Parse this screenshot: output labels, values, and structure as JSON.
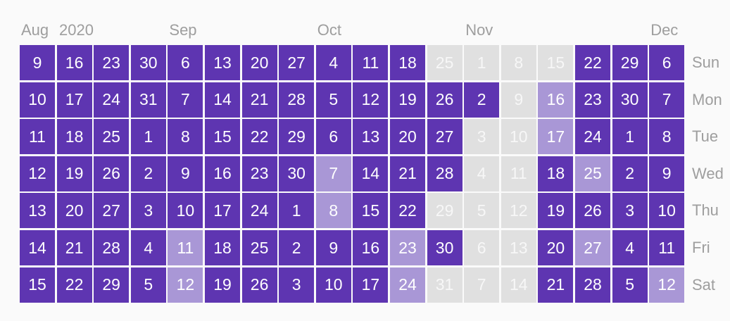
{
  "year_label": "2020",
  "month_labels": [
    {
      "text": "Aug",
      "week": 0
    },
    {
      "text": "Sep",
      "week": 4
    },
    {
      "text": "Oct",
      "week": 8
    },
    {
      "text": "Nov",
      "week": 12
    },
    {
      "text": "Dec",
      "week": 17
    }
  ],
  "day_labels": [
    "Sun",
    "Mon",
    "Tue",
    "Wed",
    "Thu",
    "Fri",
    "Sat"
  ],
  "colors": {
    "full": "#5e35b1",
    "partial": "#a997d6",
    "none": "#e0e0e0"
  },
  "legend_levels": {
    "F": "full",
    "P": "partial",
    "N": "none"
  },
  "weeks": [
    {
      "days": [
        9,
        10,
        11,
        12,
        13,
        14,
        15
      ],
      "levels": "FFFFFFF"
    },
    {
      "days": [
        16,
        17,
        18,
        19,
        20,
        21,
        22
      ],
      "levels": "FFFFFFF"
    },
    {
      "days": [
        23,
        24,
        25,
        26,
        27,
        28,
        29
      ],
      "levels": "FFFFFFF"
    },
    {
      "days": [
        30,
        31,
        1,
        2,
        3,
        4,
        5
      ],
      "levels": "FFFFFFF"
    },
    {
      "days": [
        6,
        7,
        8,
        9,
        10,
        11,
        12
      ],
      "levels": "FFFFFPP"
    },
    {
      "days": [
        13,
        14,
        15,
        16,
        17,
        18,
        19
      ],
      "levels": "FFFFFFF"
    },
    {
      "days": [
        20,
        21,
        22,
        23,
        24,
        25,
        26
      ],
      "levels": "FFFFFFF"
    },
    {
      "days": [
        27,
        28,
        29,
        30,
        1,
        2,
        3
      ],
      "levels": "FFFFFFF"
    },
    {
      "days": [
        4,
        5,
        6,
        7,
        8,
        9,
        10
      ],
      "levels": "FFFPPFF"
    },
    {
      "days": [
        11,
        12,
        13,
        14,
        15,
        16,
        17
      ],
      "levels": "FFFFFFF"
    },
    {
      "days": [
        18,
        19,
        20,
        21,
        22,
        23,
        24
      ],
      "levels": "FFFFFPP"
    },
    {
      "days": [
        25,
        26,
        27,
        28,
        29,
        30,
        31
      ],
      "levels": "NFFFNFN"
    },
    {
      "days": [
        1,
        2,
        3,
        4,
        5,
        6,
        7
      ],
      "levels": "NFNNNNN"
    },
    {
      "days": [
        8,
        9,
        10,
        11,
        12,
        13,
        14
      ],
      "levels": "NNNNNNN"
    },
    {
      "days": [
        15,
        16,
        17,
        18,
        19,
        20,
        21
      ],
      "levels": "NPPFFFF"
    },
    {
      "days": [
        22,
        23,
        24,
        25,
        26,
        27,
        28
      ],
      "levels": "FFFPFPF"
    },
    {
      "days": [
        29,
        30,
        1,
        2,
        3,
        4,
        5
      ],
      "levels": "FFFFFFF"
    },
    {
      "days": [
        6,
        7,
        8,
        9,
        10,
        11,
        12
      ],
      "levels": "FFFFFFP"
    }
  ]
}
